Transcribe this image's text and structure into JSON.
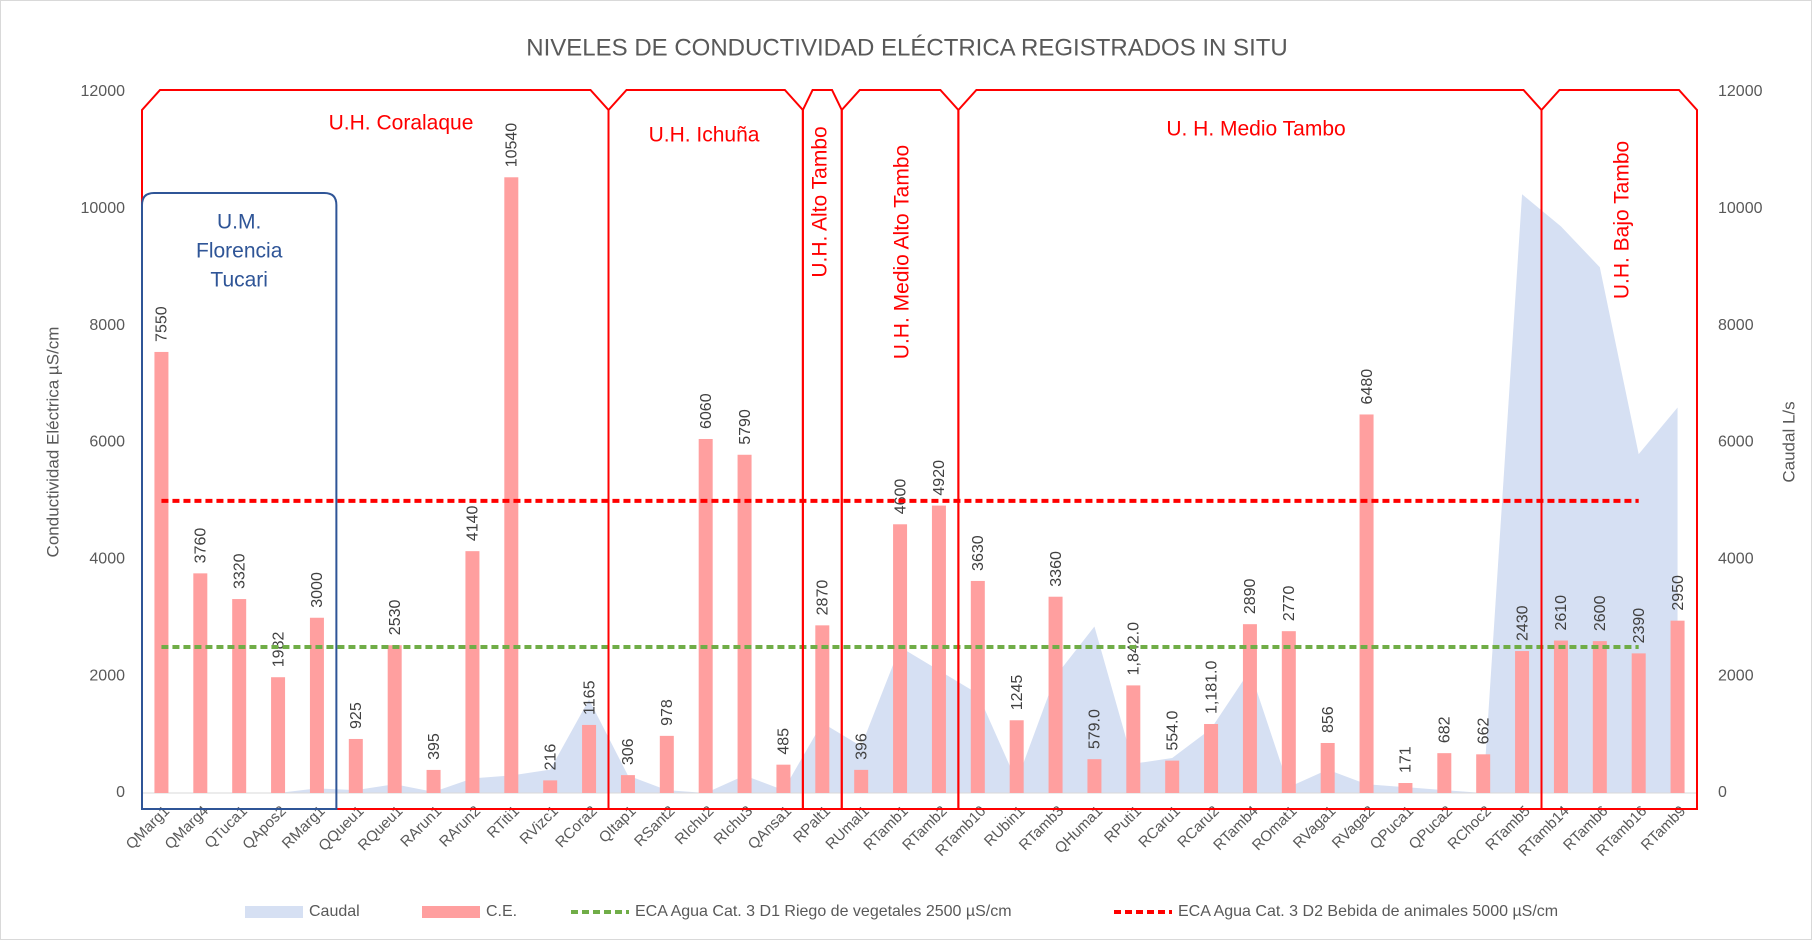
{
  "chart_data": {
    "type": "bar_area_combo",
    "title": "NIVELES DE CONDUCTIVIDAD ELÉCTRICA REGISTRADOS IN SITU",
    "y_label": "Conductividad Eléctrica µS/cm",
    "y2_label": "Caudal L/s",
    "categories": [
      "QMarg1",
      "QMarg4",
      "QTuca1",
      "QApos2",
      "RMarg1",
      "QQueu1",
      "RQueu1",
      "RArun1",
      "RArun2",
      "RTiti1",
      "RVizc1",
      "RCora2",
      "QItap1",
      "RSant2",
      "RIchu2",
      "RIchu3",
      "QAnsa1",
      "RPalt1",
      "RUmal1",
      "RTamb1",
      "RTamb2",
      "RTamb10",
      "RUbin1",
      "RTamb3",
      "QHuma1",
      "RPuti1",
      "RCaru1",
      "RCaru2",
      "RTamb4",
      "ROmat1",
      "RVaga1",
      "RVaga2",
      "QPuca1",
      "QPuca2",
      "RChoc2",
      "RTamb5",
      "RTamb14",
      "RTamb6",
      "RTamb16",
      "RTamb9"
    ],
    "series": [
      {
        "name": "Caudal",
        "type": "area",
        "axis": "y2",
        "color": "#d6e0f3",
        "values": [
          0,
          0,
          0,
          0,
          80,
          50,
          150,
          20,
          250,
          300,
          400,
          1600,
          300,
          50,
          0,
          300,
          50,
          1200,
          800,
          2500,
          2100,
          1700,
          200,
          2000,
          2850,
          500,
          600,
          1100,
          2100,
          100,
          400,
          150,
          100,
          50,
          0,
          10250,
          9700,
          9000,
          5800,
          6600
        ]
      },
      {
        "name": "C.E.",
        "type": "bar",
        "color": "#ff9f9f",
        "values": [
          7550,
          3760,
          3320,
          1982,
          3000,
          925,
          2530,
          395,
          4140,
          10540,
          216,
          1165,
          306,
          978,
          6060,
          5790,
          485,
          2870,
          396,
          4600,
          4920,
          3630,
          1245,
          3360,
          579,
          1842,
          554,
          1181,
          2890,
          2770,
          856,
          6480,
          171,
          682,
          662,
          2430,
          2610,
          2600,
          2390,
          2950
        ],
        "value_labels": [
          "7550",
          "3760",
          "3320",
          "1982",
          "3000",
          "925",
          "2530",
          "395",
          "4140",
          "10540",
          "216",
          "1165",
          "306",
          "978",
          "6060",
          "5790",
          "485",
          "2870",
          "396",
          "4600",
          "4920",
          "3630",
          "1245",
          "3360",
          "579.0",
          "1,842.0",
          "554.0",
          "1,181.0",
          "2890",
          "2770",
          "856",
          "6480",
          "171",
          "682",
          "662",
          "2430",
          "2610",
          "2600",
          "2390",
          "2950"
        ]
      }
    ],
    "reference_lines": [
      {
        "name": "ECA Agua Cat. 3 D1 Riego de vegetales 2500 µS/cm",
        "value": 2500,
        "color": "#70ad47"
      },
      {
        "name": "ECA Agua Cat. 3 D2 Bebida de animales 5000 µS/cm",
        "value": 5000,
        "color": "#ff0000"
      }
    ],
    "ylim": [
      0,
      12000
    ],
    "yticks": [
      0,
      2000,
      4000,
      6000,
      8000,
      10000,
      12000
    ],
    "y2lim": [
      0,
      12000
    ],
    "y2ticks": [
      0,
      2000,
      4000,
      6000,
      8000,
      10000,
      12000
    ],
    "regions": [
      {
        "label": "U.H. Coralaque"
      },
      {
        "label": "U.H. Ichuña"
      },
      {
        "label": "U.H. Alto Tambo"
      },
      {
        "label": "U.H. Medio Alto Tambo"
      },
      {
        "label": "U. H. Medio Tambo"
      },
      {
        "label": "U.H. Bajo Tambo"
      }
    ],
    "subregion": {
      "label_lines": [
        "U.M.",
        "Florencia",
        "Tucari"
      ]
    },
    "legend": "bottom"
  }
}
